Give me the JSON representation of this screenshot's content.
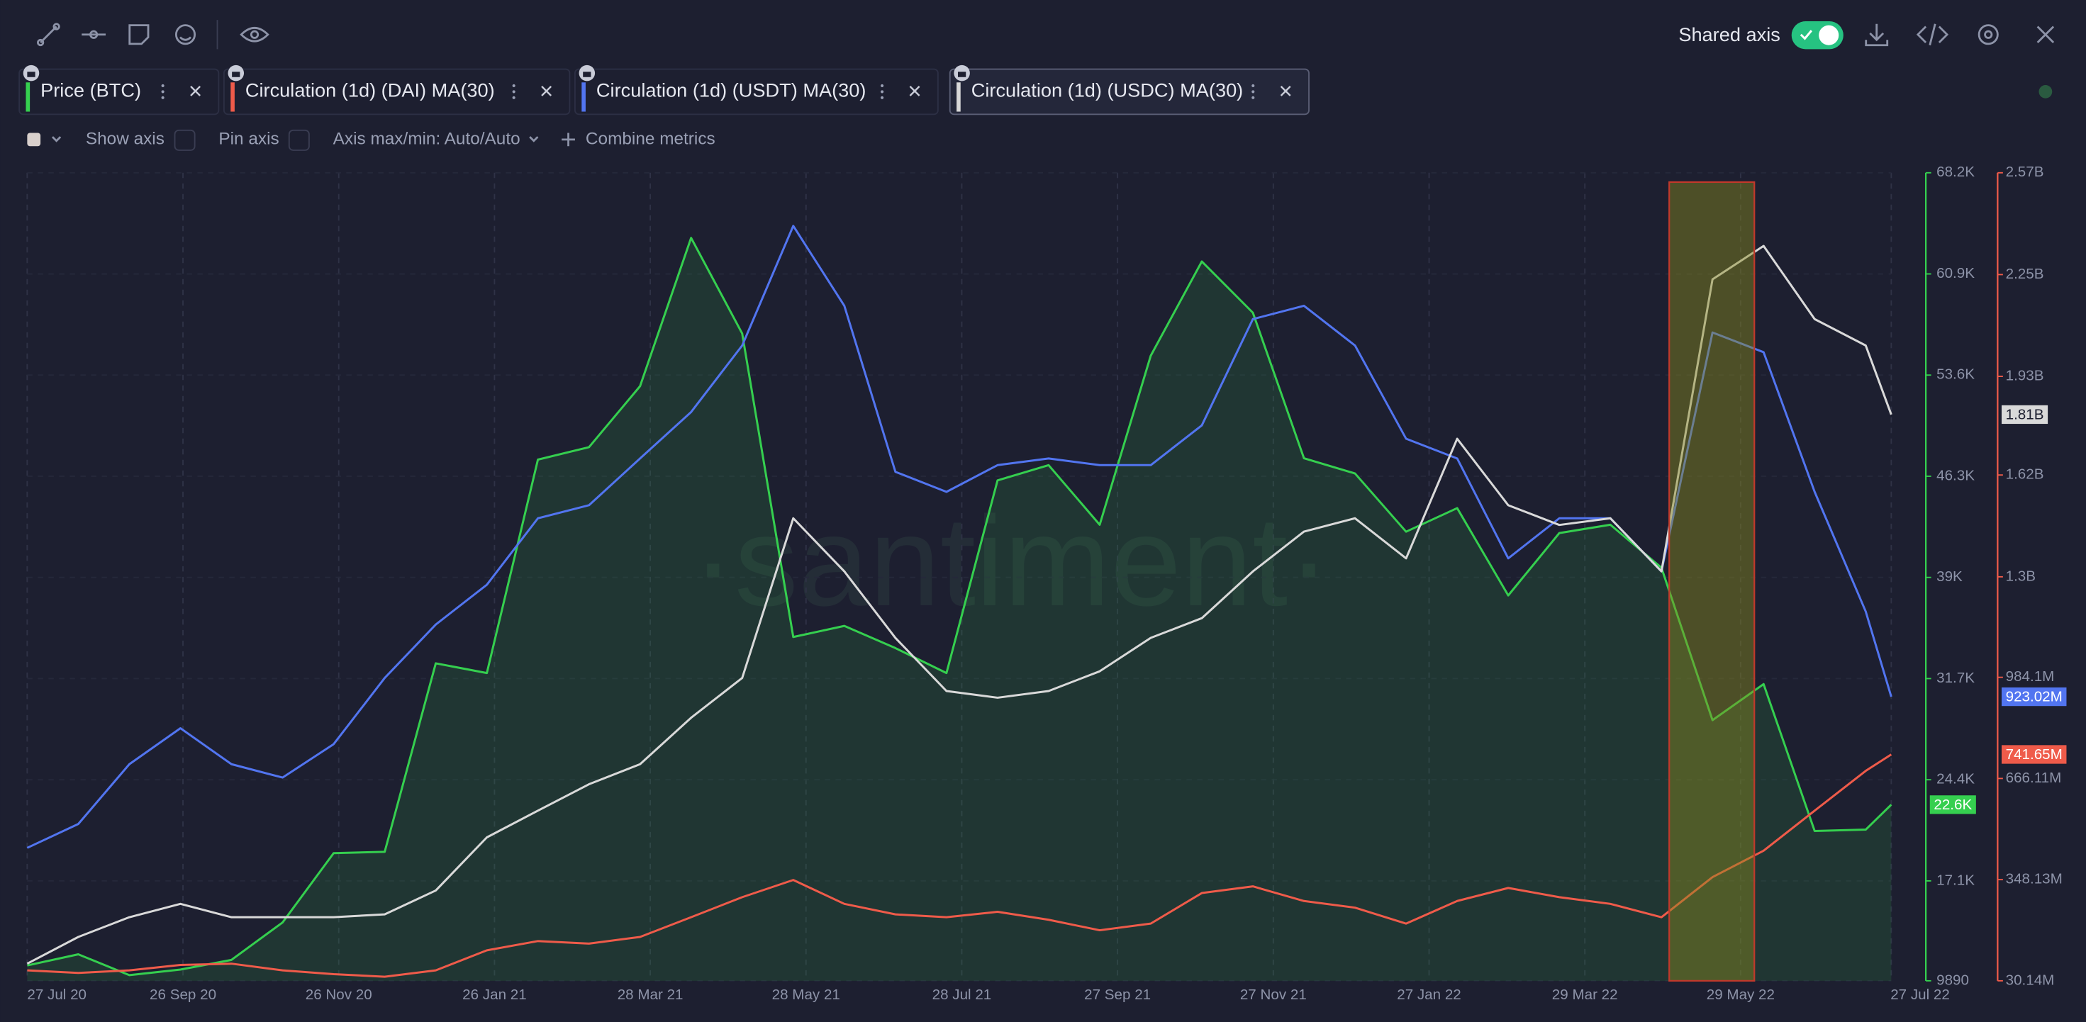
{
  "toolbar": {
    "shared_axis": "Shared axis"
  },
  "controls": {
    "show_axis": "Show axis",
    "pin_axis": "Pin axis",
    "axis_range": "Axis max/min: Auto/Auto",
    "combine": "Combine metrics"
  },
  "chart_data": {
    "type": "line",
    "watermark": "·santiment·",
    "x": [
      "27 Jul 20",
      "16 Aug 20",
      "5 Sep 20",
      "25 Sep 20",
      "15 Oct 20",
      "4 Nov 20",
      "24 Nov 20",
      "14 Dec 20",
      "3 Jan 21",
      "23 Jan 21",
      "12 Feb 21",
      "4 Mar 21",
      "24 Mar 21",
      "13 Apr 21",
      "3 May 21",
      "23 May 21",
      "12 Jun 21",
      "2 Jul 21",
      "22 Jul 21",
      "11 Aug 21",
      "31 Aug 21",
      "20 Sep 21",
      "10 Oct 21",
      "30 Oct 21",
      "19 Nov 21",
      "9 Dec 21",
      "29 Dec 21",
      "18 Jan 22",
      "7 Feb 22",
      "27 Feb 22",
      "19 Mar 22",
      "8 Apr 22",
      "28 Apr 22",
      "18 May 22",
      "7 Jun 22",
      "27 Jun 22",
      "17 Jul 22",
      "27 Jul 22"
    ],
    "xlim": [
      "27 Jul 20",
      "27 Jul 22"
    ],
    "xticks": [
      "27 Jul 20",
      "26 Sep 20",
      "26 Nov 20",
      "26 Jan 21",
      "28 Mar 21",
      "28 May 21",
      "28 Jul 21",
      "27 Sep 21",
      "27 Nov 21",
      "27 Jan 22",
      "29 Mar 22",
      "29 May 22",
      "27 Jul 22"
    ],
    "ylim": [
      9890,
      68200
    ],
    "yticks": [
      9890,
      {
        "value": 17100,
        "label": "17.1K"
      },
      {
        "value": 24400,
        "label": "24.4K"
      },
      {
        "value": 31700,
        "label": "31.7K"
      },
      {
        "value": 39000,
        "label": "39K"
      },
      {
        "value": 46300,
        "label": "46.3K"
      },
      {
        "value": 53600,
        "label": "53.6K"
      },
      {
        "value": 60900,
        "label": "60.9K"
      },
      {
        "value": 68200,
        "label": "68.2K"
      }
    ],
    "y2lim": [
      30140000,
      2570000000
    ],
    "y2ticks": [
      {
        "value": 30140000,
        "label": "30.14M"
      },
      {
        "value": 348130000,
        "label": "348.13M"
      },
      {
        "value": 666110000,
        "label": "666.11M"
      },
      {
        "value": 984100000,
        "label": "984.1M"
      },
      {
        "value": 1300000000,
        "label": "1.3B"
      },
      {
        "value": 1620000000,
        "label": "1.62B"
      },
      {
        "value": 1930000000,
        "label": "1.93B"
      },
      {
        "value": 2250000000,
        "label": "2.25B"
      },
      {
        "value": 2570000000,
        "label": "2.57B"
      }
    ],
    "grid": true,
    "series": [
      {
        "name": "Price (BTC)",
        "color": "#35cf4f",
        "area": true,
        "values": [
          11000,
          11800,
          10300,
          10700,
          11400,
          14100,
          19100,
          19200,
          32800,
          32100,
          47500,
          48400,
          52800,
          63500,
          56600,
          34700,
          35500,
          33900,
          32100,
          46000,
          47100,
          42800,
          55000,
          61800,
          58100,
          47600,
          46500,
          42300,
          44000,
          37700,
          42200,
          42800,
          39700,
          28700,
          31300,
          20700,
          20800,
          22600
        ],
        "value_labels": [
          null,
          null,
          null,
          null,
          null,
          null,
          null,
          null,
          null,
          null,
          null,
          null,
          null,
          null,
          null,
          null,
          null,
          null,
          null,
          null,
          null,
          null,
          null,
          null,
          null,
          null,
          null,
          null,
          null,
          null,
          null,
          null,
          null,
          null,
          null,
          null,
          null,
          "22.6K"
        ]
      },
      {
        "name": "Circulation (1d) (DAI) MA(30)",
        "color": "#ef5b4a",
        "axis": "y2",
        "values": [
          63000000,
          55000000,
          63000000,
          80000000,
          84000000,
          63000000,
          51000000,
          43000000,
          63000000,
          126000000,
          155000000,
          147000000,
          168000000,
          230000000,
          293000000,
          347000000,
          272000000,
          239000000,
          230000000,
          247000000,
          222000000,
          189000000,
          210000000,
          306000000,
          327000000,
          281000000,
          260000000,
          210000000,
          281000000,
          322000000,
          293000000,
          272000000,
          230000000,
          356000000,
          439000000,
          565000000,
          690000000,
          741650000
        ],
        "value_labels": [
          null,
          null,
          null,
          null,
          null,
          null,
          null,
          null,
          null,
          null,
          null,
          null,
          null,
          null,
          null,
          null,
          null,
          null,
          null,
          null,
          null,
          null,
          null,
          null,
          null,
          null,
          null,
          null,
          null,
          null,
          null,
          null,
          null,
          null,
          null,
          null,
          null,
          "741.65M"
        ]
      },
      {
        "name": "Circulation (1d) (USDT) MA(30)",
        "color": "#5275f0",
        "axis": "y2",
        "values": [
          448000000,
          523000000,
          711000000,
          824000000,
          711000000,
          669000000,
          774000000,
          982000000,
          1150000000,
          1275000000,
          1484000000,
          1525000000,
          1672000000,
          1818000000,
          2027000000,
          2403000000,
          2152000000,
          1630000000,
          1567000000,
          1651000000,
          1672000000,
          1651000000,
          1651000000,
          1776000000,
          2110000000,
          2152000000,
          2027000000,
          1734000000,
          1672000000,
          1358000000,
          1484000000,
          1484000000,
          1317000000,
          2068000000,
          2006000000,
          1567000000,
          1191000000,
          923020000
        ],
        "value_labels": [
          null,
          null,
          null,
          null,
          null,
          null,
          null,
          null,
          null,
          null,
          null,
          null,
          null,
          null,
          null,
          null,
          null,
          null,
          null,
          null,
          null,
          null,
          null,
          null,
          null,
          null,
          null,
          null,
          null,
          null,
          null,
          null,
          null,
          null,
          null,
          null,
          null,
          "923.02M"
        ]
      },
      {
        "name": "Circulation (1d) (USDC) MA(30)",
        "color": "#d9d9d9",
        "axis": "y2",
        "values": [
          84000000,
          168000000,
          230000000,
          272000000,
          230000000,
          230000000,
          230000000,
          239000000,
          314000000,
          481000000,
          565000000,
          648000000,
          711000000,
          857000000,
          982000000,
          1484000000,
          1317000000,
          1108000000,
          941000000,
          920000000,
          941000000,
          1003000000,
          1108000000,
          1170000000,
          1317000000,
          1442000000,
          1484000000,
          1358000000,
          1734000000,
          1525000000,
          1463000000,
          1484000000,
          1317000000,
          2235000000,
          2340000000,
          2110000000,
          2027000000,
          1810000000
        ],
        "value_labels": [
          null,
          null,
          null,
          null,
          null,
          null,
          null,
          null,
          null,
          null,
          null,
          null,
          null,
          null,
          null,
          null,
          null,
          null,
          null,
          null,
          null,
          null,
          null,
          null,
          null,
          null,
          null,
          null,
          null,
          null,
          null,
          null,
          null,
          null,
          null,
          null,
          null,
          "1.81B"
        ]
      }
    ]
  }
}
